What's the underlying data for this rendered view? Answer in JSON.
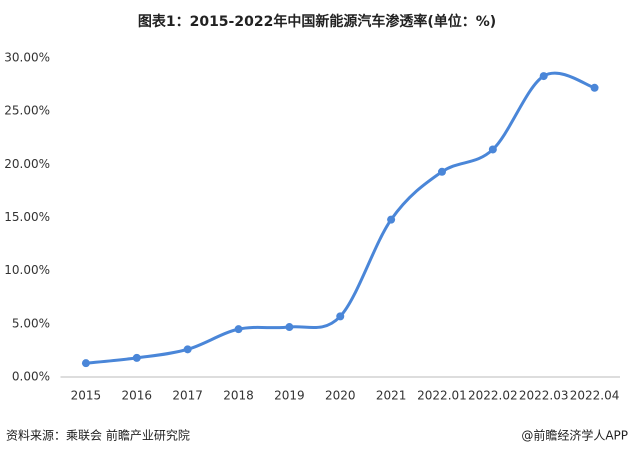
{
  "chart_data": {
    "type": "line",
    "title": "图表1：2015-2022年中国新能源汽车渗透率(单位：%)",
    "source": "资料来源：乘联会 前瞻产业研究院",
    "credit": "@前瞻经济学人APP",
    "categories": [
      "2015",
      "2016",
      "2017",
      "2018",
      "2019",
      "2020",
      "2021",
      "2022.01",
      "2022.02",
      "2022.03",
      "2022.04"
    ],
    "series": [
      {
        "name": "新能源汽车渗透率",
        "color": "#4a86d8",
        "values": [
          1.3,
          1.8,
          2.6,
          4.5,
          4.7,
          5.7,
          14.8,
          19.3,
          21.4,
          28.3,
          27.2
        ]
      }
    ],
    "ylim": [
      0,
      30
    ],
    "yticks": [
      {
        "value": 0,
        "label": "0.00%"
      },
      {
        "value": 5,
        "label": "5.00%"
      },
      {
        "value": 10,
        "label": "10.00%"
      },
      {
        "value": 15,
        "label": "15.00%"
      },
      {
        "value": 20,
        "label": "20.00%"
      },
      {
        "value": 25,
        "label": "25.00%"
      },
      {
        "value": 30,
        "label": "30.00%"
      }
    ],
    "grid": false
  }
}
